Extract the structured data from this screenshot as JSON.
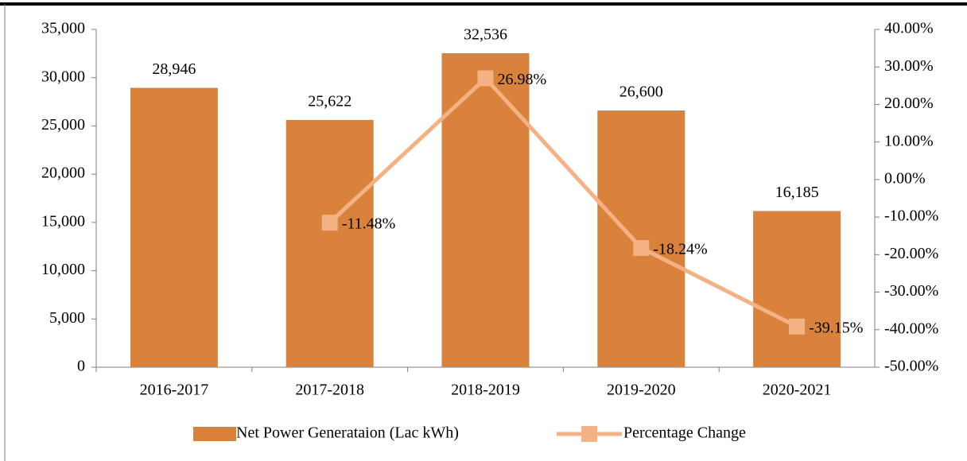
{
  "chart_data": {
    "type": "bar",
    "categories": [
      "2016-2017",
      "2017-2018",
      "2018-2019",
      "2019-2020",
      "2020-2021"
    ],
    "series": [
      {
        "name": "Net Power Generataion (Lac kWh)",
        "type": "bar",
        "color": "#d9823b",
        "values": [
          28946,
          25622,
          32536,
          26600,
          16185
        ],
        "value_labels": [
          "28,946",
          "25,622",
          "32,536",
          "26,600",
          "16,185"
        ]
      },
      {
        "name": "Percentage Change",
        "type": "line",
        "axis": "y2",
        "color": "#f4b183",
        "values": [
          null,
          -11.48,
          26.98,
          -18.24,
          -39.15
        ],
        "value_labels": [
          null,
          "-11.48%",
          "26.98%",
          "-18.24%",
          "-39.15%"
        ]
      }
    ],
    "ylim": [
      0,
      35000
    ],
    "yticks": [
      0,
      {
        "value": 5000,
        "label": "5,000"
      },
      {
        "value": 10000,
        "label": "10,000"
      },
      {
        "value": 15000,
        "label": "15,000"
      },
      {
        "value": 20000,
        "label": "20,000"
      },
      {
        "value": 25000,
        "label": "25,000"
      },
      {
        "value": 30000,
        "label": "30,000"
      },
      {
        "value": 35000,
        "label": "35,000"
      }
    ],
    "y2lim": [
      -50,
      40
    ],
    "y2ticks": [
      {
        "value": -50,
        "label": "-50.00%"
      },
      {
        "value": -40,
        "label": "-40.00%"
      },
      {
        "value": -30,
        "label": "-30.00%"
      },
      {
        "value": -20,
        "label": "-20.00%"
      },
      {
        "value": -10,
        "label": "-10.00%"
      },
      {
        "value": 0,
        "label": "0.00%"
      },
      {
        "value": 10,
        "label": "10.00%"
      },
      {
        "value": 20,
        "label": "20.00%"
      },
      {
        "value": 30,
        "label": "30.00%"
      },
      {
        "value": 40,
        "label": "40.00%"
      }
    ],
    "legend": "bottom",
    "grid": false
  }
}
